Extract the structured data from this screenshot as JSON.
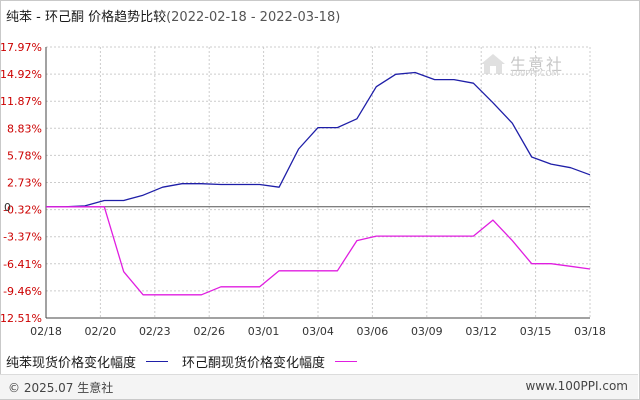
{
  "header": {
    "title": "纯苯 - 环己酮 价格趋势比较",
    "date_range": "(2022-02-18 - 2022-03-18)"
  },
  "watermark": {
    "text": "生意社",
    "url": "100PPI.COM"
  },
  "footer": {
    "copyright": "© 2025.07 生意社",
    "site": "www.100PPI.com"
  },
  "colors": {
    "series1": "#1f1fa8",
    "series2": "#e01ee0",
    "ytick": "#cc0000",
    "grid": "#cccccc",
    "axis": "#444444"
  },
  "chart_data": {
    "type": "line",
    "title": "纯苯 - 环己酮 价格趋势比较",
    "ylim": [
      -12.51,
      17.97
    ],
    "y_ticks": [
      "17.97%",
      "14.92%",
      "11.87%",
      "8.83%",
      "5.78%",
      "2.73%",
      "-0.32%",
      "-3.37%",
      "-6.41%",
      "-9.46%",
      "-12.51%"
    ],
    "y_tick_values": [
      17.97,
      14.92,
      11.87,
      8.83,
      5.78,
      2.73,
      -0.32,
      -3.37,
      -6.41,
      -9.46,
      -12.51
    ],
    "x_ticks": [
      "02/18",
      "02/20",
      "02/23",
      "02/26",
      "03/01",
      "03/04",
      "03/06",
      "03/09",
      "03/12",
      "03/15",
      "03/18"
    ],
    "zero_label": "0",
    "grid": true,
    "legend_position": "bottom-left",
    "series": [
      {
        "name": "纯苯现货价格变化幅度",
        "x": [
          "02/18",
          "02/19",
          "02/20",
          "02/21",
          "02/22",
          "02/23",
          "02/24",
          "02/25",
          "02/26",
          "02/27",
          "02/28",
          "03/01",
          "03/02",
          "03/03",
          "03/04",
          "03/05",
          "03/06",
          "03/07",
          "03/08",
          "03/09",
          "03/10",
          "03/11",
          "03/12",
          "03/13",
          "03/14",
          "03/15",
          "03/16",
          "03/17",
          "03/18"
        ],
        "values": [
          0,
          0,
          0.1,
          0.7,
          0.7,
          1.3,
          2.2,
          2.6,
          2.6,
          2.5,
          2.5,
          2.5,
          2.2,
          6.5,
          8.9,
          8.9,
          9.9,
          13.5,
          14.9,
          15.1,
          14.3,
          14.3,
          13.9,
          11.7,
          9.4,
          5.6,
          4.8,
          4.4,
          3.6
        ]
      },
      {
        "name": "环己酮现货价格变化幅度",
        "x": [
          "02/18",
          "02/19",
          "02/20",
          "02/21",
          "02/22",
          "02/23",
          "02/24",
          "02/25",
          "02/26",
          "02/27",
          "02/28",
          "03/01",
          "03/02",
          "03/03",
          "03/04",
          "03/05",
          "03/06",
          "03/07",
          "03/08",
          "03/09",
          "03/10",
          "03/11",
          "03/12",
          "03/13",
          "03/14",
          "03/15",
          "03/16",
          "03/17",
          "03/18"
        ],
        "values": [
          0,
          0,
          0,
          0,
          -7.3,
          -9.9,
          -9.9,
          -9.9,
          -9.9,
          -9.0,
          -9.0,
          -9.0,
          -7.2,
          -7.2,
          -7.2,
          -7.2,
          -3.8,
          -3.3,
          -3.3,
          -3.3,
          -3.3,
          -3.3,
          -3.3,
          -1.5,
          -3.8,
          -6.4,
          -6.4,
          -6.7,
          -7.0
        ]
      }
    ]
  }
}
